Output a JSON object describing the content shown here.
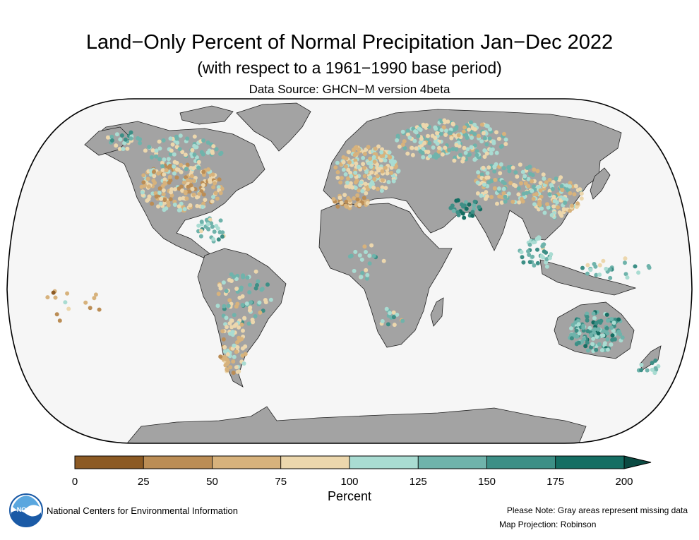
{
  "header": {
    "title": "Land−Only Percent of Normal Precipitation Jan−Dec 2022",
    "subtitle": "(with respect to a 1961−1990 base period)",
    "source": "Data Source: GHCN−M version 4beta"
  },
  "legend": {
    "label": "Percent",
    "ticks": [
      "0",
      "25",
      "50",
      "75",
      "100",
      "125",
      "150",
      "175",
      "200"
    ],
    "bins": [
      {
        "from": 0,
        "to": 25,
        "color": "#8c5a24"
      },
      {
        "from": 25,
        "to": 50,
        "color": "#bb8d55"
      },
      {
        "from": 50,
        "to": 75,
        "color": "#d7b27c"
      },
      {
        "from": 75,
        "to": 100,
        "color": "#ecd7ad"
      },
      {
        "from": 100,
        "to": 125,
        "color": "#a9dcd2"
      },
      {
        "from": 125,
        "to": 150,
        "color": "#6fb3ab"
      },
      {
        "from": 150,
        "to": 175,
        "color": "#3d8f86"
      },
      {
        "from": 175,
        "to": 200,
        "color": "#156e63"
      }
    ],
    "overflow_color": "#0b4a42"
  },
  "map": {
    "projection": "Robinson",
    "ocean_color": "#f6f6f6",
    "missing_color": "#a3a3a3"
  },
  "footer": {
    "organization": "National Centers for Environmental Information",
    "note": "Please Note: Gray areas represent missing data",
    "projection_note": "Map Projection: Robinson"
  },
  "logo": {
    "text": "NOAA",
    "color": "#1a5aa6"
  }
}
